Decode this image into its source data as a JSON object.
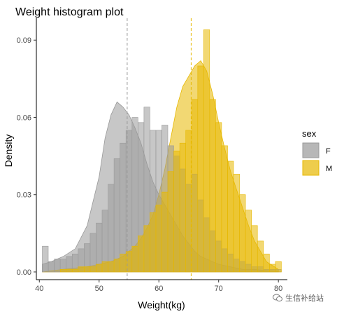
{
  "chart_data": {
    "type": "histogram",
    "title": "Weight histogram plot",
    "xlabel": "Weight(kg)",
    "ylabel": "Density",
    "xlim": [
      39.5,
      81.5
    ],
    "ylim": [
      -0.003,
      0.0985
    ],
    "xticks": [
      40,
      50,
      60,
      70,
      80
    ],
    "yticks": [
      0.0,
      0.03,
      0.06,
      0.09
    ],
    "ytick_labels": [
      "0.00",
      "0.03",
      "0.06",
      "0.09"
    ],
    "grid": false,
    "legend": {
      "title": "sex",
      "position": "right"
    },
    "bin_width": 1,
    "bins_start": 40.5,
    "series": [
      {
        "name": "F",
        "fill": "#999999",
        "mean": 54.7,
        "density": [
          0.01,
          0.004,
          0.005,
          0.005,
          0.006,
          0.007,
          0.009,
          0.011,
          0.015,
          0.019,
          0.024,
          0.034,
          0.044,
          0.05,
          0.055,
          0.06,
          0.058,
          0.064,
          0.055,
          0.055,
          0.057,
          0.049,
          0.045,
          0.04,
          0.034,
          0.038,
          0.028,
          0.021,
          0.016,
          0.012,
          0.009,
          0.007,
          0.005,
          0.004,
          0.003,
          0.002,
          0.002,
          0.001,
          0.001,
          0.001
        ]
      },
      {
        "name": "M",
        "fill": "#E7B800",
        "mean": 65.4,
        "density": [
          0.0,
          0.0,
          0.0,
          0.001,
          0.001,
          0.001,
          0.002,
          0.002,
          0.002,
          0.003,
          0.004,
          0.004,
          0.005,
          0.007,
          0.008,
          0.01,
          0.014,
          0.018,
          0.023,
          0.026,
          0.031,
          0.039,
          0.047,
          0.05,
          0.055,
          0.067,
          0.08,
          0.094,
          0.067,
          0.058,
          0.049,
          0.043,
          0.038,
          0.03,
          0.024,
          0.018,
          0.012,
          0.007,
          0.003,
          0.004
        ]
      }
    ],
    "density_curves": [
      {
        "name": "F",
        "x": [
          40.5,
          42,
          44,
          46,
          48,
          50,
          51,
          52,
          53,
          54,
          55,
          56,
          57,
          58,
          59,
          60,
          61,
          62,
          63,
          64,
          65,
          66,
          67,
          68,
          70,
          72,
          74,
          76,
          78,
          80
        ],
        "y": [
          0.003,
          0.004,
          0.006,
          0.009,
          0.018,
          0.037,
          0.052,
          0.061,
          0.066,
          0.064,
          0.061,
          0.056,
          0.05,
          0.042,
          0.035,
          0.03,
          0.026,
          0.022,
          0.018,
          0.014,
          0.011,
          0.008,
          0.006,
          0.005,
          0.003,
          0.002,
          0.001,
          0.001,
          0.0005,
          0.0002
        ]
      },
      {
        "name": "M",
        "x": [
          40.5,
          44,
          48,
          50,
          52,
          54,
          55,
          56,
          57,
          58,
          59,
          60,
          61,
          62,
          63,
          64,
          65,
          66,
          67,
          68,
          69,
          70,
          71,
          72,
          73,
          74,
          75,
          76,
          77,
          78,
          80
        ],
        "y": [
          0.0,
          0.001,
          0.002,
          0.003,
          0.004,
          0.006,
          0.008,
          0.01,
          0.013,
          0.017,
          0.022,
          0.03,
          0.04,
          0.052,
          0.064,
          0.072,
          0.076,
          0.08,
          0.082,
          0.078,
          0.069,
          0.058,
          0.048,
          0.039,
          0.032,
          0.025,
          0.018,
          0.012,
          0.008,
          0.004,
          0.001
        ]
      }
    ]
  },
  "watermark": {
    "text": "生信补给站"
  }
}
